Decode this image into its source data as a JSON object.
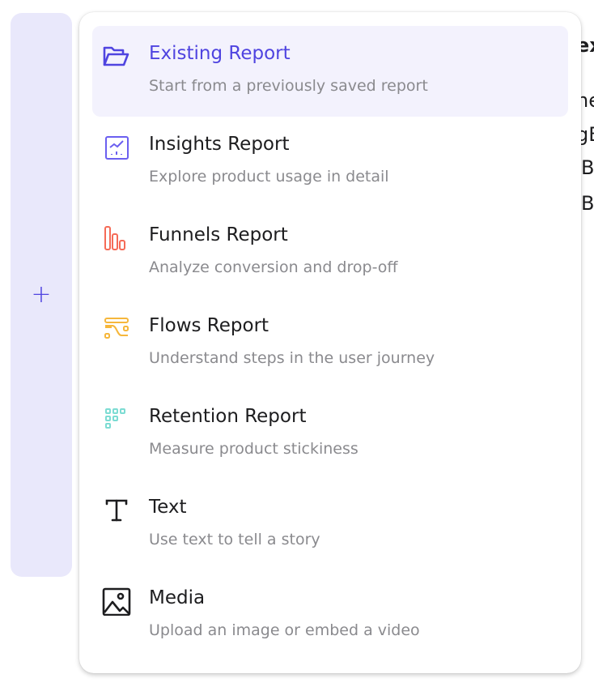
{
  "add_column": {
    "icon": "plus-icon"
  },
  "background_fragments": [
    "ex",
    "ne",
    "gB",
    "B",
    "B"
  ],
  "menu": {
    "items": [
      {
        "title": "Existing Report",
        "subtitle": "Start from a previously saved report",
        "icon": "folder-open-icon",
        "color": "#4f44e0",
        "active": true
      },
      {
        "title": "Insights Report",
        "subtitle": "Explore product usage in detail",
        "icon": "insights-chart-icon",
        "color": "#6b5ff0"
      },
      {
        "title": "Funnels Report",
        "subtitle": "Analyze conversion and drop-off",
        "icon": "funnel-bars-icon",
        "color": "#f56b57"
      },
      {
        "title": "Flows Report",
        "subtitle": "Understand steps in the user journey",
        "icon": "flows-icon",
        "color": "#f6b73c"
      },
      {
        "title": "Retention Report",
        "subtitle": "Measure product stickiness",
        "icon": "retention-grid-icon",
        "color": "#7ddcd3"
      },
      {
        "title": "Text",
        "subtitle": "Use text to tell a story",
        "icon": "text-icon",
        "color": "#1d1d1f"
      },
      {
        "title": "Media",
        "subtitle": "Upload an image or embed a video",
        "icon": "image-icon",
        "color": "#1d1d1f"
      }
    ]
  }
}
